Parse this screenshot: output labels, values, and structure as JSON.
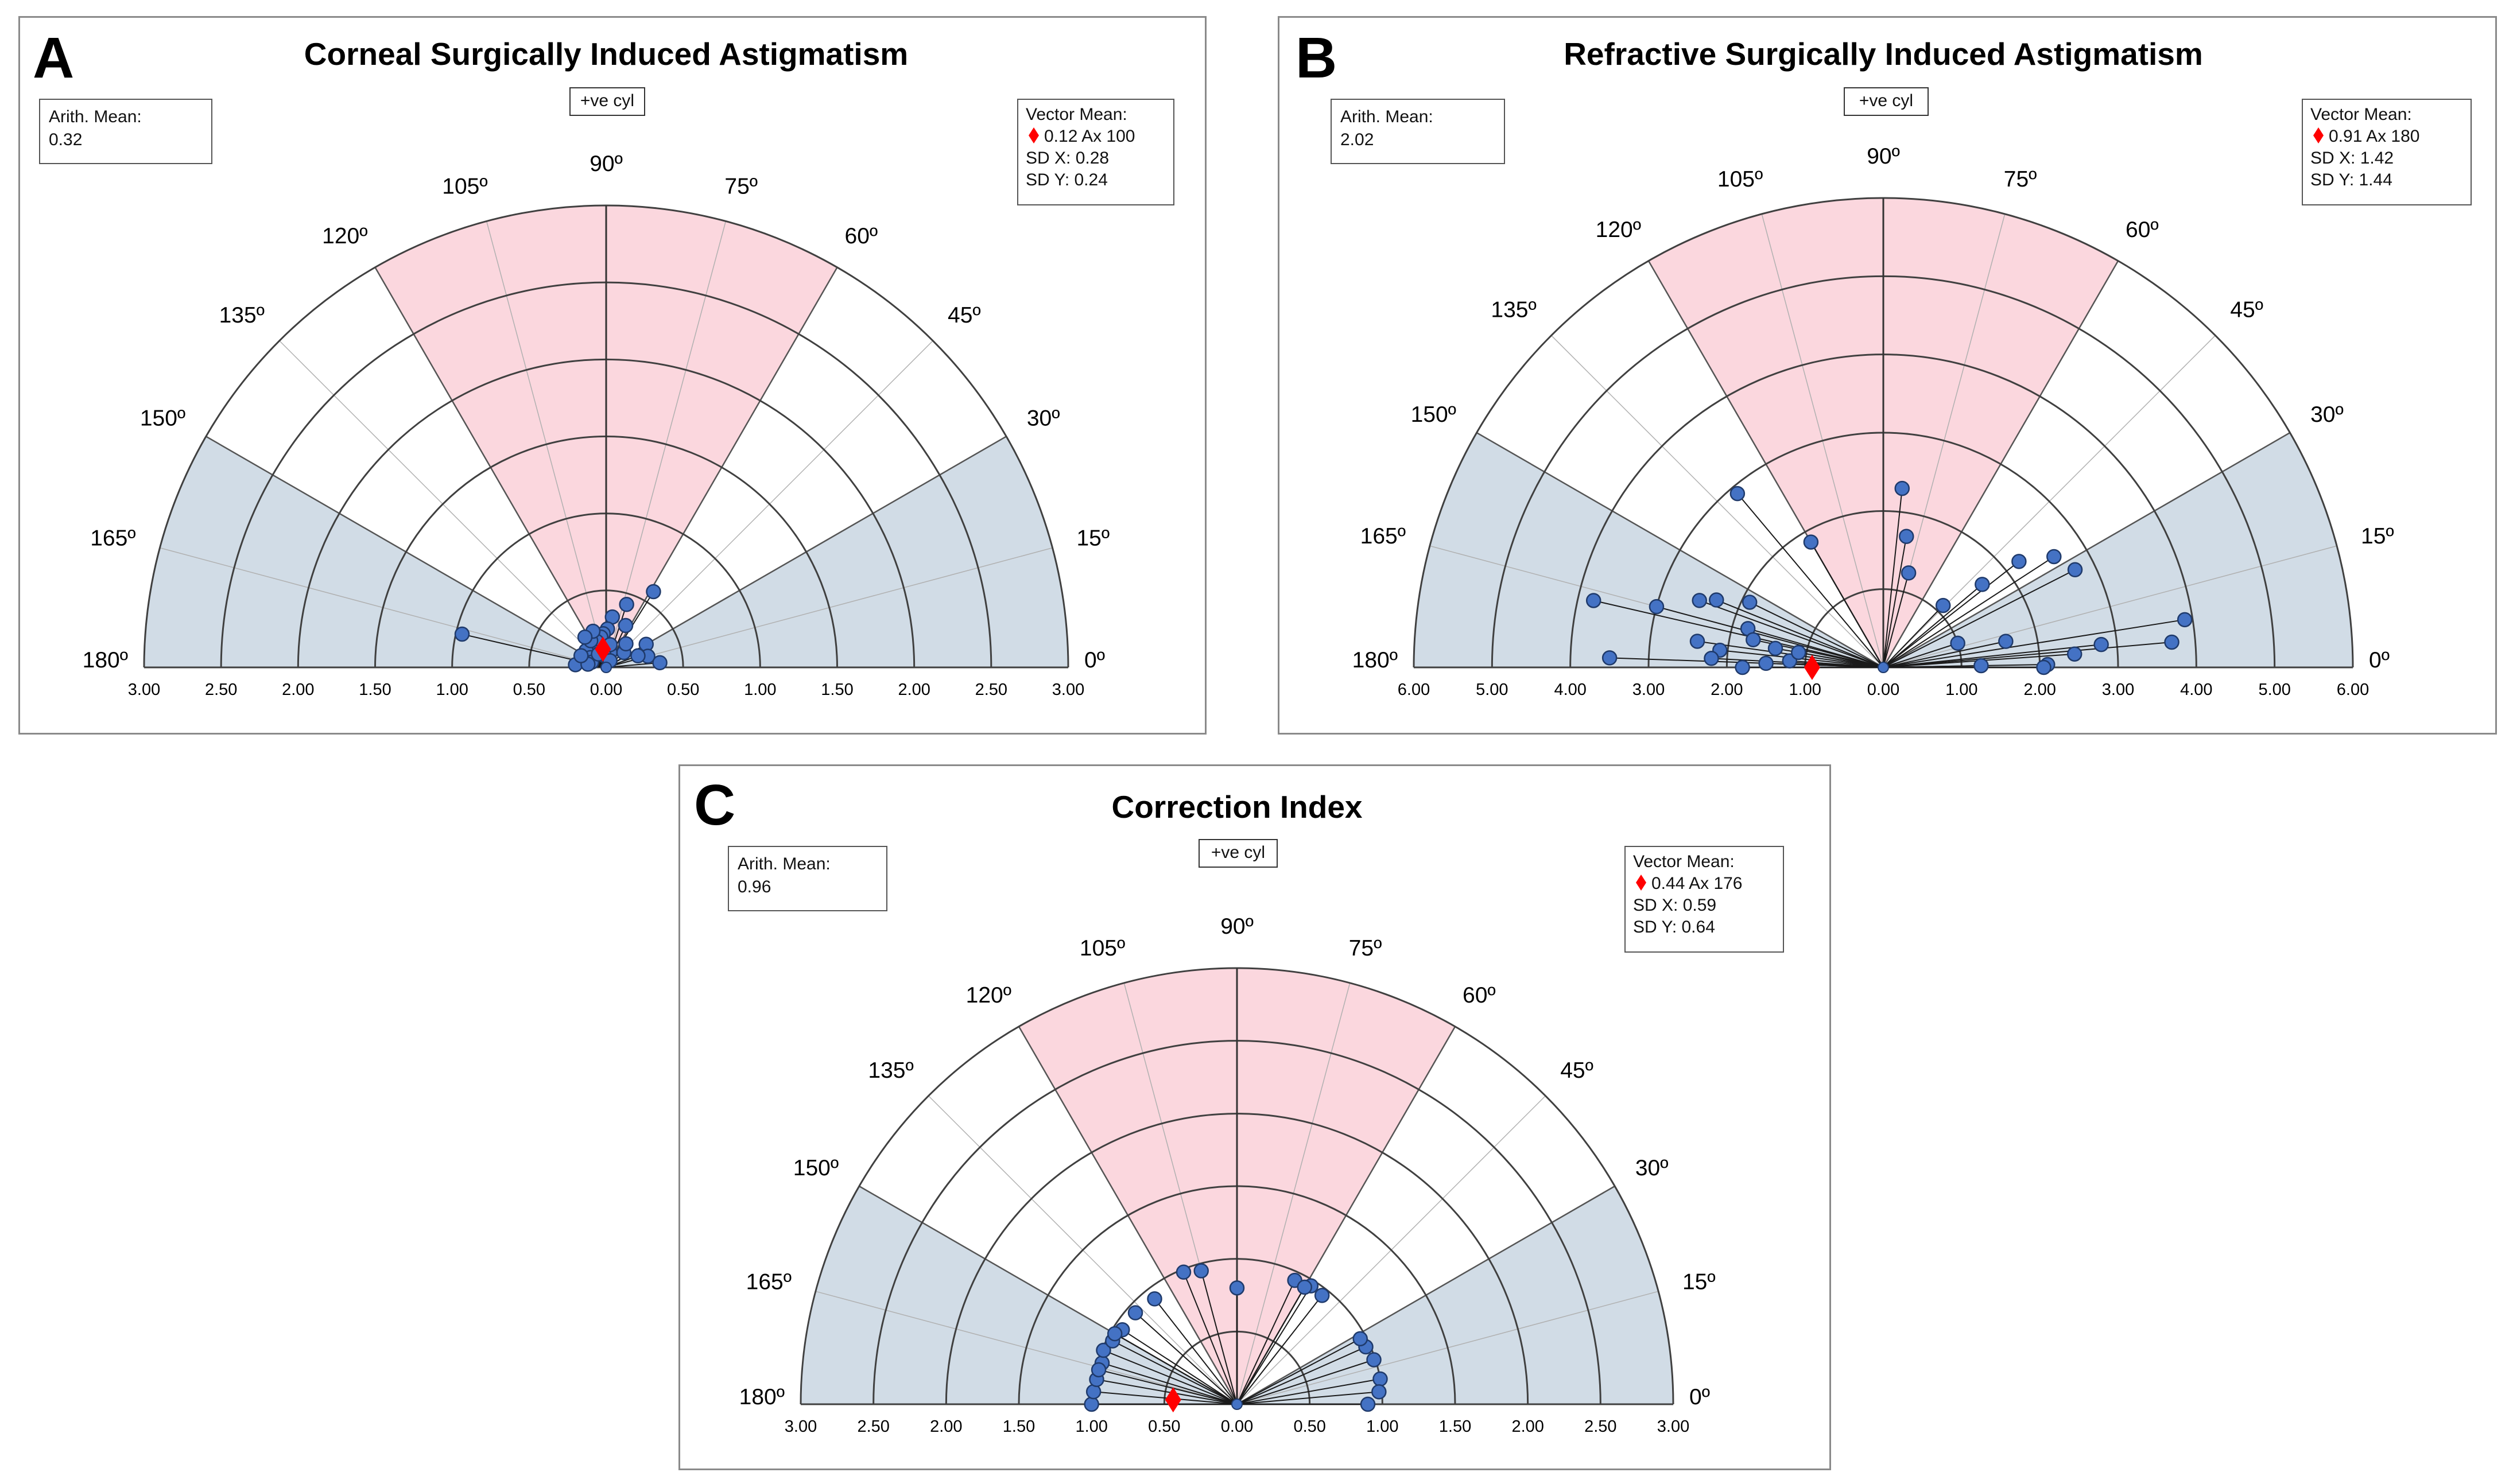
{
  "panels": {
    "A": {
      "letter": "A"
    },
    "B": {
      "letter": "B"
    },
    "C": {
      "letter": "C"
    }
  },
  "colors": {
    "pink_sector": "#fbd7de",
    "blue_sector": "#d1dce6",
    "point_fill": "#4472c4",
    "point_stroke": "#1f3a6b",
    "mean_marker": "#ff0000",
    "grid_line": "#404040"
  },
  "icons": {
    "mean_marker": "red-diamond-icon",
    "data_point": "blue-circle-icon"
  },
  "chart_data": [
    {
      "id": "A",
      "type": "scatter",
      "subtype": "polar-half",
      "title": "Corneal Surgically Induced Astigmatism",
      "cyl_label": "+ve cyl",
      "arith_mean_label": "Arith. Mean:",
      "arith_mean_value": "0.32",
      "vector_mean_label": "Vector Mean:",
      "vector_mean_value": "0.12 Ax 100",
      "sd_x": "SD X: 0.28",
      "sd_y": "SD Y: 0.24",
      "radius_max": 3,
      "ring_values": [
        0.5,
        1,
        1.5,
        2,
        2.5,
        3
      ],
      "axis_ticks": [
        "3.00",
        "2.50",
        "2.00",
        "1.50",
        "1.00",
        "0.50",
        "0.00",
        "0.50",
        "1.00",
        "1.50",
        "2.00",
        "2.50",
        "3.00"
      ],
      "angle_labels": [
        "0º",
        "15º",
        "30º",
        "45º",
        "60º",
        "75º",
        "90º",
        "105º",
        "120º",
        "135º",
        "150º",
        "165º",
        "180º"
      ],
      "pink_range_deg": [
        60,
        120
      ],
      "blue_ranges_deg": [
        [
          0,
          30
        ],
        [
          150,
          180
        ]
      ],
      "vector_mean": {
        "magnitude": 0.12,
        "axis": 100
      },
      "points": [
        {
          "m": 0.96,
          "a": 167
        },
        {
          "m": 0.58,
          "a": 58
        },
        {
          "m": 0.43,
          "a": 72
        },
        {
          "m": 0.33,
          "a": 83
        },
        {
          "m": 0.3,
          "a": 65
        },
        {
          "m": 0.25,
          "a": 88
        },
        {
          "m": 0.22,
          "a": 95
        },
        {
          "m": 0.2,
          "a": 100
        },
        {
          "m": 0.18,
          "a": 110
        },
        {
          "m": 0.15,
          "a": 130
        },
        {
          "m": 0.17,
          "a": 140
        },
        {
          "m": 0.12,
          "a": 148
        },
        {
          "m": 0.2,
          "a": 120
        },
        {
          "m": 0.25,
          "a": 110
        },
        {
          "m": 0.1,
          "a": 75
        },
        {
          "m": 0.3,
          "a": 30
        },
        {
          "m": 0.28,
          "a": 15
        },
        {
          "m": 0.35,
          "a": 5
        },
        {
          "m": 0.22,
          "a": 20
        },
        {
          "m": 0.15,
          "a": 40
        },
        {
          "m": 0.1,
          "a": 160
        },
        {
          "m": 0.2,
          "a": 175
        },
        {
          "m": 0.08,
          "a": 100
        },
        {
          "m": 0.05,
          "a": 60
        },
        {
          "m": 0.12,
          "a": 170
        },
        {
          "m": 0.18,
          "a": 155
        },
        {
          "m": 0.24,
          "a": 125
        },
        {
          "m": 0.15,
          "a": 80
        },
        {
          "m": 0.2,
          "a": 50
        },
        {
          "m": 0.1,
          "a": 120
        }
      ]
    },
    {
      "id": "B",
      "type": "scatter",
      "subtype": "polar-half",
      "title": "Refractive Surgically Induced Astigmatism",
      "cyl_label": "+ve cyl",
      "arith_mean_label": "Arith. Mean:",
      "arith_mean_value": "2.02",
      "vector_mean_label": "Vector Mean:",
      "vector_mean_value": "0.91 Ax 180",
      "sd_x": "SD X: 1.42",
      "sd_y": "SD Y: 1.44",
      "radius_max": 6,
      "ring_values": [
        1,
        2,
        3,
        4,
        5,
        6
      ],
      "axis_ticks": [
        "6.00",
        "5.00",
        "4.00",
        "3.00",
        "2.00",
        "1.00",
        "0.00",
        "1.00",
        "2.00",
        "3.00",
        "4.00",
        "5.00",
        "6.00"
      ],
      "angle_labels": [
        "0º",
        "15º",
        "30º",
        "45º",
        "60º",
        "75º",
        "90º",
        "105º",
        "120º",
        "135º",
        "150º",
        "165º",
        "180º"
      ],
      "pink_range_deg": [
        60,
        120
      ],
      "blue_ranges_deg": [
        [
          0,
          30
        ],
        [
          150,
          180
        ]
      ],
      "vector_mean": {
        "magnitude": 0.91,
        "axis": 180
      },
      "points": [
        {
          "m": 3.5,
          "a": 178
        },
        {
          "m": 3.8,
          "a": 167
        },
        {
          "m": 3.0,
          "a": 165
        },
        {
          "m": 2.5,
          "a": 160
        },
        {
          "m": 2.3,
          "a": 158
        },
        {
          "m": 2.4,
          "a": 172
        },
        {
          "m": 2.1,
          "a": 174
        },
        {
          "m": 1.8,
          "a": 164
        },
        {
          "m": 1.4,
          "a": 170
        },
        {
          "m": 1.2,
          "a": 176
        },
        {
          "m": 1.5,
          "a": 178
        },
        {
          "m": 1.7,
          "a": 168
        },
        {
          "m": 1.1,
          "a": 170
        },
        {
          "m": 1.8,
          "a": 180
        },
        {
          "m": 2.2,
          "a": 177
        },
        {
          "m": 1.9,
          "a": 154
        },
        {
          "m": 2.9,
          "a": 130
        },
        {
          "m": 1.85,
          "a": 120
        },
        {
          "m": 2.3,
          "a": 84
        },
        {
          "m": 1.7,
          "a": 80
        },
        {
          "m": 1.25,
          "a": 75
        },
        {
          "m": 2.2,
          "a": 38
        },
        {
          "m": 2.6,
          "a": 33
        },
        {
          "m": 2.75,
          "a": 27
        },
        {
          "m": 1.65,
          "a": 40
        },
        {
          "m": 1.1,
          "a": 46
        },
        {
          "m": 1.0,
          "a": 18
        },
        {
          "m": 3.9,
          "a": 9
        },
        {
          "m": 3.7,
          "a": 5
        },
        {
          "m": 2.8,
          "a": 6
        },
        {
          "m": 2.45,
          "a": 4
        },
        {
          "m": 2.1,
          "a": 1
        },
        {
          "m": 2.05,
          "a": 0
        },
        {
          "m": 1.25,
          "a": 1
        },
        {
          "m": 1.6,
          "a": 12
        }
      ]
    },
    {
      "id": "C",
      "type": "scatter",
      "subtype": "polar-half",
      "title": "Correction Index",
      "cyl_label": "+ve cyl",
      "arith_mean_label": "Arith. Mean:",
      "arith_mean_value": "0.96",
      "vector_mean_label": "Vector Mean:",
      "vector_mean_value": "0.44 Ax 176",
      "sd_x": "SD X: 0.59",
      "sd_y": "SD Y: 0.64",
      "radius_max": 3,
      "ring_values": [
        0.5,
        1,
        1.5,
        2,
        2.5,
        3
      ],
      "axis_ticks": [
        "3.00",
        "2.50",
        "2.00",
        "1.50",
        "1.00",
        "0.50",
        "0.00",
        "0.50",
        "1.00",
        "1.50",
        "2.00",
        "2.50",
        "3.00"
      ],
      "angle_labels": [
        "0º",
        "15º",
        "30º",
        "45º",
        "60º",
        "75º",
        "90º",
        "105º",
        "120º",
        "135º",
        "150º",
        "165º",
        "180º"
      ],
      "pink_range_deg": [
        60,
        120
      ],
      "blue_ranges_deg": [
        [
          0,
          30
        ],
        [
          150,
          180
        ]
      ],
      "vector_mean": {
        "magnitude": 0.44,
        "axis": 176
      },
      "points": [
        {
          "m": 1.0,
          "a": 180
        },
        {
          "m": 0.99,
          "a": 175
        },
        {
          "m": 0.98,
          "a": 170
        },
        {
          "m": 0.97,
          "a": 163
        },
        {
          "m": 0.99,
          "a": 158
        },
        {
          "m": 0.96,
          "a": 153
        },
        {
          "m": 0.94,
          "a": 147
        },
        {
          "m": 0.94,
          "a": 138
        },
        {
          "m": 0.92,
          "a": 128
        },
        {
          "m": 0.98,
          "a": 112
        },
        {
          "m": 0.95,
          "a": 105
        },
        {
          "m": 0.8,
          "a": 90
        },
        {
          "m": 0.94,
          "a": 65
        },
        {
          "m": 0.96,
          "a": 58
        },
        {
          "m": 0.95,
          "a": 52
        },
        {
          "m": 0.97,
          "a": 24
        },
        {
          "m": 0.99,
          "a": 18
        },
        {
          "m": 1.0,
          "a": 10
        },
        {
          "m": 0.98,
          "a": 5
        },
        {
          "m": 0.9,
          "a": 0
        },
        {
          "m": 0.98,
          "a": 166
        },
        {
          "m": 0.97,
          "a": 150
        },
        {
          "m": 0.93,
          "a": 60
        },
        {
          "m": 0.96,
          "a": 28
        }
      ]
    }
  ]
}
